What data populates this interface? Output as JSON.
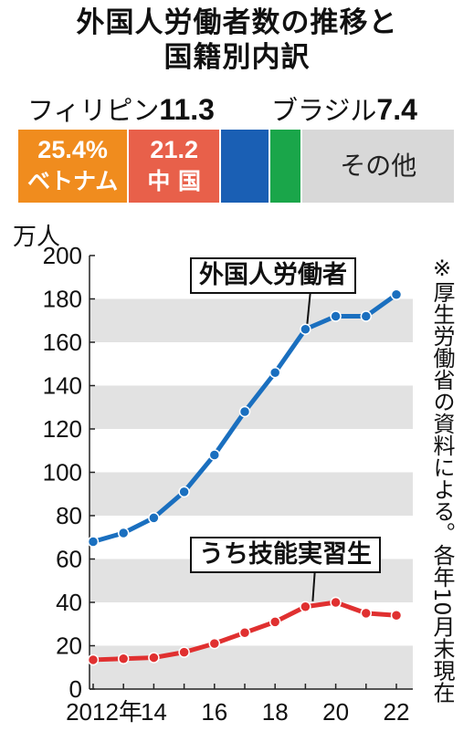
{
  "title_lines": [
    "外国人労働者数の推移と",
    "国籍別内訳"
  ],
  "breakdown": {
    "segments": [
      {
        "pct": "25.4%",
        "name": "ベトナム",
        "color": "#f08c1e",
        "value": 25.4
      },
      {
        "pct": "21.2",
        "name": "中 国",
        "color": "#e8604a",
        "value": 21.2
      },
      {
        "pct": "",
        "name": "",
        "color": "#1a5fb4",
        "value": 11.3
      },
      {
        "pct": "",
        "name": "",
        "color": "#1aa64a",
        "value": 7.4
      },
      {
        "pct": "",
        "name": "その他",
        "color": "#d8d8d8",
        "value": 34.7
      }
    ],
    "philippines_label": "フィリピン",
    "philippines_value": "11.3",
    "brazil_label": "ブラジル",
    "brazil_value": "7.4"
  },
  "chart_data": {
    "type": "line",
    "x": [
      2012,
      2013,
      2014,
      2015,
      2016,
      2017,
      2018,
      2019,
      2020,
      2021,
      2022
    ],
    "xtick_labels": [
      {
        "x": 2012,
        "label": "2012年"
      },
      {
        "x": 2014,
        "label": "14"
      },
      {
        "x": 2016,
        "label": "16"
      },
      {
        "x": 2018,
        "label": "18"
      },
      {
        "x": 2020,
        "label": "20"
      },
      {
        "x": 2022,
        "label": "22"
      }
    ],
    "ylabel": "万人",
    "ylim": [
      0,
      200
    ],
    "yticks": [
      0,
      20,
      40,
      60,
      80,
      100,
      120,
      140,
      160,
      180,
      200
    ],
    "grid": "horizontal alternating bands",
    "series": [
      {
        "name": "外国人労働者",
        "color": "#1a6fbf",
        "values": [
          68,
          72,
          79,
          91,
          108,
          128,
          146,
          166,
          172,
          172,
          182
        ]
      },
      {
        "name": "うち技能実習生",
        "color": "#e03030",
        "values": [
          13.5,
          14,
          14.5,
          17,
          21,
          26,
          31,
          38,
          40,
          35,
          34
        ]
      }
    ],
    "note": "※厚生労働省の資料による。各年10月末現在"
  }
}
